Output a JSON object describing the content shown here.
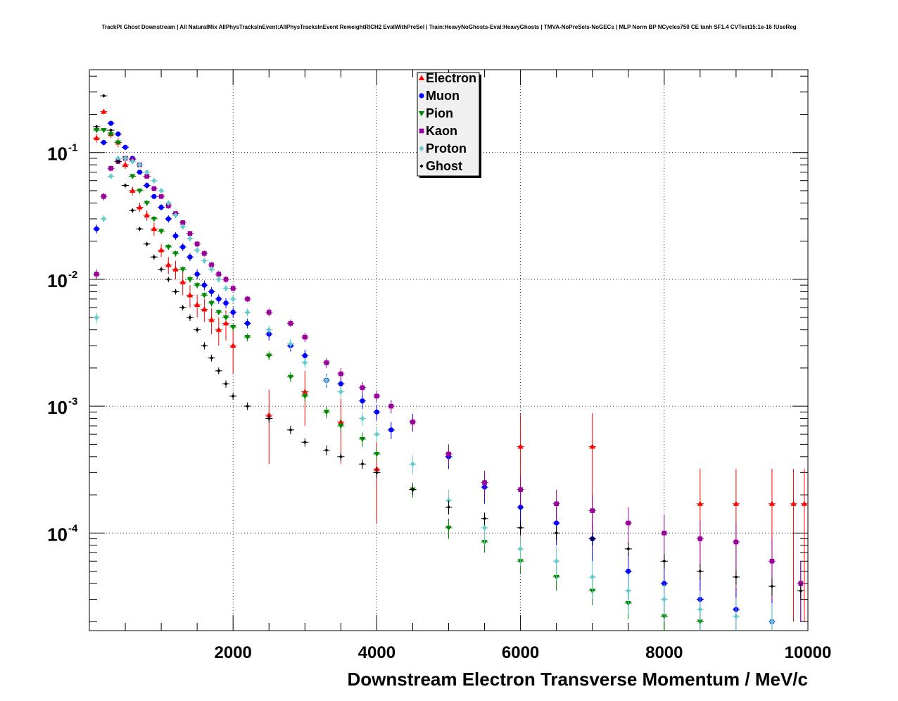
{
  "title": "TrackPt Ghost Downstream | All NaturalMix AllPhysTracksInEvent:AllPhysTracksInEvent ReweightRICH2 EvalWithPreSel | Train:HeavyNoGhosts-Eval:HeavyGhosts | TMVA-NoPreSels-NoGECs | MLP Norm BP NCycles750 CE tanh SF1.4 CVTest15:1e-16 !UseReg",
  "chart_data": {
    "type": "scatter",
    "xlabel": "Downstream Electron Transverse Momentum / MeV/c",
    "ylabel": "",
    "xlim": [
      0,
      10000
    ],
    "ylim": [
      1.7e-05,
      0.45
    ],
    "yscale": "log",
    "grid": true,
    "legend_position": "top-center",
    "x_ticks": [
      "2000",
      "4000",
      "6000",
      "8000",
      "10000"
    ],
    "y_ticks": [
      {
        "value": 0.1,
        "mantissa": "10",
        "exponent": "-1"
      },
      {
        "value": 0.01,
        "mantissa": "10",
        "exponent": "-2"
      },
      {
        "value": 0.001,
        "mantissa": "10",
        "exponent": "-3"
      },
      {
        "value": 0.0001,
        "mantissa": "10",
        "exponent": "-4"
      }
    ],
    "series": [
      {
        "name": "Electron",
        "color": "#ff0000",
        "marker": "triangle-up",
        "x": [
          100,
          200,
          300,
          400,
          500,
          600,
          700,
          800,
          900,
          1000,
          1100,
          1200,
          1300,
          1400,
          1500,
          1600,
          1700,
          1800,
          1900,
          2000,
          2500,
          3000,
          3500,
          4000,
          6000,
          7000,
          8500,
          9000,
          9500,
          9800,
          9950
        ],
        "y": [
          0.13,
          0.21,
          0.14,
          0.12,
          0.08,
          0.05,
          0.037,
          0.032,
          0.025,
          0.017,
          0.013,
          0.012,
          0.0095,
          0.0075,
          0.0063,
          0.0058,
          0.0048,
          0.004,
          0.0045,
          0.003,
          0.00085,
          0.0013,
          0.00075,
          0.00032,
          0.00048,
          0.00048,
          0.00017,
          0.00017,
          0.00017,
          0.00017,
          0.00017
        ],
        "yerr": [
          0.01,
          0.01,
          0.01,
          0.01,
          0.006,
          0.004,
          0.003,
          0.003,
          0.003,
          0.002,
          0.002,
          0.002,
          0.002,
          0.0015,
          0.0013,
          0.0012,
          0.0011,
          0.001,
          0.0012,
          0.0012,
          0.0005,
          0.0006,
          0.0004,
          0.0002,
          0.0004,
          0.0004,
          0.00015,
          0.00015,
          0.00015,
          0.00015,
          0.00015
        ]
      },
      {
        "name": "Muon",
        "color": "#0000ff",
        "marker": "circle",
        "x": [
          100,
          200,
          300,
          400,
          500,
          600,
          700,
          800,
          900,
          1000,
          1100,
          1200,
          1300,
          1400,
          1500,
          1600,
          1700,
          1800,
          1900,
          2000,
          2200,
          2500,
          2800,
          3000,
          3300,
          3500,
          3800,
          4000,
          4200,
          4500,
          5000,
          5500,
          6000,
          6500,
          7000,
          7500,
          8000,
          8500,
          9000,
          9500,
          9900
        ],
        "y": [
          0.025,
          0.12,
          0.17,
          0.14,
          0.11,
          0.09,
          0.07,
          0.055,
          0.045,
          0.037,
          0.03,
          0.022,
          0.018,
          0.015,
          0.011,
          0.009,
          0.008,
          0.007,
          0.0065,
          0.0055,
          0.0045,
          0.0037,
          0.003,
          0.0025,
          0.0016,
          0.0015,
          0.0011,
          0.0009,
          0.00065,
          0.00075,
          0.0004,
          0.00023,
          0.00016,
          0.00012,
          9e-05,
          5e-05,
          4e-05,
          3e-05,
          2.5e-05,
          2e-05,
          4e-05
        ],
        "yerr": [
          0.002,
          0.006,
          0.008,
          0.007,
          0.005,
          0.004,
          0.003,
          0.003,
          0.002,
          0.002,
          0.002,
          0.0015,
          0.0013,
          0.0011,
          0.001,
          0.0008,
          0.0007,
          0.0006,
          0.0006,
          0.0005,
          0.0004,
          0.0004,
          0.0003,
          0.0003,
          0.0002,
          0.0002,
          0.00015,
          0.00013,
          0.0001,
          0.00012,
          8e-05,
          6e-05,
          5e-05,
          4e-05,
          3e-05,
          2e-05,
          1.8e-05,
          1.5e-05,
          1.2e-05,
          1e-05,
          2e-05
        ]
      },
      {
        "name": "Pion",
        "color": "#008800",
        "marker": "triangle-down",
        "x": [
          100,
          200,
          300,
          400,
          500,
          600,
          700,
          800,
          900,
          1000,
          1100,
          1200,
          1300,
          1400,
          1500,
          1600,
          1700,
          1800,
          1900,
          2000,
          2200,
          2500,
          2800,
          3000,
          3300,
          3500,
          3800,
          4000,
          4500,
          5000,
          5500,
          6000,
          6500,
          7000,
          7500,
          8000,
          8500
        ],
        "y": [
          0.15,
          0.15,
          0.14,
          0.12,
          0.09,
          0.065,
          0.05,
          0.04,
          0.03,
          0.024,
          0.018,
          0.016,
          0.012,
          0.01,
          0.009,
          0.0075,
          0.0065,
          0.0055,
          0.005,
          0.0042,
          0.0035,
          0.0025,
          0.0017,
          0.0012,
          0.0009,
          0.0007,
          0.00055,
          0.00042,
          0.00022,
          0.00011,
          8.5e-05,
          6e-05,
          4.5e-05,
          3.5e-05,
          2.8e-05,
          2.2e-05,
          2e-05
        ],
        "yerr": [
          0.006,
          0.006,
          0.006,
          0.005,
          0.004,
          0.003,
          0.002,
          0.002,
          0.0015,
          0.0013,
          0.001,
          0.0009,
          0.0007,
          0.0006,
          0.0005,
          0.0004,
          0.0004,
          0.0003,
          0.0003,
          0.0003,
          0.00025,
          0.0002,
          0.00015,
          0.00012,
          0.0001,
          8e-05,
          7e-05,
          5e-05,
          3e-05,
          2e-05,
          1.5e-05,
          1.2e-05,
          1e-05,
          8e-06,
          7e-06,
          6e-06,
          6e-06
        ]
      },
      {
        "name": "Kaon",
        "color": "#990099",
        "marker": "square",
        "x": [
          100,
          200,
          300,
          400,
          500,
          600,
          700,
          800,
          900,
          1000,
          1100,
          1200,
          1300,
          1400,
          1500,
          1600,
          1700,
          1800,
          1900,
          2000,
          2200,
          2500,
          2800,
          3000,
          3300,
          3500,
          3800,
          4000,
          4200,
          4500,
          5000,
          5500,
          6000,
          6500,
          7000,
          7500,
          8000,
          8500,
          9000,
          9500,
          9900
        ],
        "y": [
          0.011,
          0.045,
          0.075,
          0.085,
          0.09,
          0.088,
          0.08,
          0.065,
          0.052,
          0.045,
          0.038,
          0.033,
          0.028,
          0.023,
          0.019,
          0.016,
          0.013,
          0.011,
          0.01,
          0.0085,
          0.007,
          0.0055,
          0.0045,
          0.0035,
          0.0022,
          0.0018,
          0.0014,
          0.0012,
          0.001,
          0.00075,
          0.00042,
          0.00025,
          0.00022,
          0.00017,
          0.00015,
          0.00012,
          0.0001,
          9e-05,
          8.5e-05,
          6e-05,
          4e-05
        ],
        "yerr": [
          0.001,
          0.003,
          0.004,
          0.004,
          0.004,
          0.004,
          0.003,
          0.003,
          0.002,
          0.002,
          0.002,
          0.0015,
          0.0013,
          0.0011,
          0.001,
          0.0009,
          0.0008,
          0.0007,
          0.0006,
          0.0005,
          0.0004,
          0.0004,
          0.0003,
          0.0003,
          0.0002,
          0.0002,
          0.00015,
          0.00013,
          0.00012,
          0.0001,
          8e-05,
          6e-05,
          6e-05,
          5e-05,
          5e-05,
          4e-05,
          4e-05,
          3.5e-05,
          3.5e-05,
          3e-05,
          2e-05
        ]
      },
      {
        "name": "Proton",
        "color": "#66cccc",
        "marker": "diamond",
        "x": [
          100,
          200,
          300,
          400,
          500,
          600,
          700,
          800,
          900,
          1000,
          1100,
          1200,
          1300,
          1400,
          1500,
          1600,
          1700,
          1800,
          1900,
          2000,
          2200,
          2500,
          2800,
          3000,
          3300,
          3500,
          3800,
          4000,
          4500,
          5000,
          5500,
          6000,
          6500,
          7000,
          7500,
          8000,
          8500,
          9000,
          9500
        ],
        "y": [
          0.005,
          0.03,
          0.065,
          0.09,
          0.09,
          0.085,
          0.08,
          0.07,
          0.06,
          0.05,
          0.04,
          0.032,
          0.026,
          0.021,
          0.017,
          0.014,
          0.012,
          0.01,
          0.0085,
          0.007,
          0.0055,
          0.004,
          0.0031,
          0.0022,
          0.0016,
          0.0013,
          0.0008,
          0.0006,
          0.00035,
          0.00018,
          0.00011,
          7.5e-05,
          6e-05,
          4.5e-05,
          3.5e-05,
          3e-05,
          2.5e-05,
          2.2e-05,
          2e-05
        ],
        "yerr": [
          0.0005,
          0.002,
          0.003,
          0.004,
          0.004,
          0.004,
          0.003,
          0.003,
          0.003,
          0.002,
          0.002,
          0.0015,
          0.0013,
          0.0011,
          0.001,
          0.0008,
          0.0007,
          0.0006,
          0.0005,
          0.0005,
          0.0004,
          0.0003,
          0.0003,
          0.0002,
          0.00015,
          0.00013,
          0.0001,
          8e-05,
          6e-05,
          4e-05,
          3e-05,
          2e-05,
          1.8e-05,
          1.5e-05,
          1.2e-05,
          1e-05,
          1e-05,
          9e-06,
          8e-06
        ]
      },
      {
        "name": "Ghost",
        "color": "#000000",
        "marker": "diamond-small",
        "x": [
          100,
          200,
          300,
          400,
          500,
          600,
          700,
          800,
          900,
          1000,
          1100,
          1200,
          1300,
          1400,
          1500,
          1600,
          1700,
          1800,
          1900,
          2000,
          2200,
          2500,
          2800,
          3000,
          3300,
          3500,
          3800,
          4000,
          4500,
          5000,
          5500,
          6000,
          6500,
          7000,
          7500,
          8000,
          8500,
          9000,
          9500,
          9900
        ],
        "y": [
          0.16,
          0.28,
          0.15,
          0.085,
          0.055,
          0.035,
          0.025,
          0.019,
          0.015,
          0.012,
          0.01,
          0.008,
          0.006,
          0.005,
          0.004,
          0.003,
          0.0024,
          0.0019,
          0.0015,
          0.0012,
          0.001,
          0.0008,
          0.00065,
          0.00052,
          0.00045,
          0.0004,
          0.00035,
          0.0003,
          0.00022,
          0.00016,
          0.00013,
          0.00011,
          0.0001,
          9e-05,
          7.5e-05,
          6e-05,
          5e-05,
          4.5e-05,
          3.8e-05,
          3.5e-05
        ],
        "yerr": [
          0.004,
          0.006,
          0.004,
          0.003,
          0.002,
          0.0015,
          0.001,
          0.0008,
          0.0007,
          0.0006,
          0.0005,
          0.0004,
          0.0003,
          0.0003,
          0.0002,
          0.0002,
          0.00015,
          0.00012,
          0.0001,
          8e-05,
          7e-05,
          6e-05,
          5e-05,
          4e-05,
          4e-05,
          3e-05,
          3e-05,
          3e-05,
          2e-05,
          2e-05,
          1.5e-05,
          1.3e-05,
          1.2e-05,
          1e-05,
          9e-06,
          8e-06,
          7e-06,
          6e-06,
          6e-06,
          5e-06
        ]
      }
    ]
  }
}
